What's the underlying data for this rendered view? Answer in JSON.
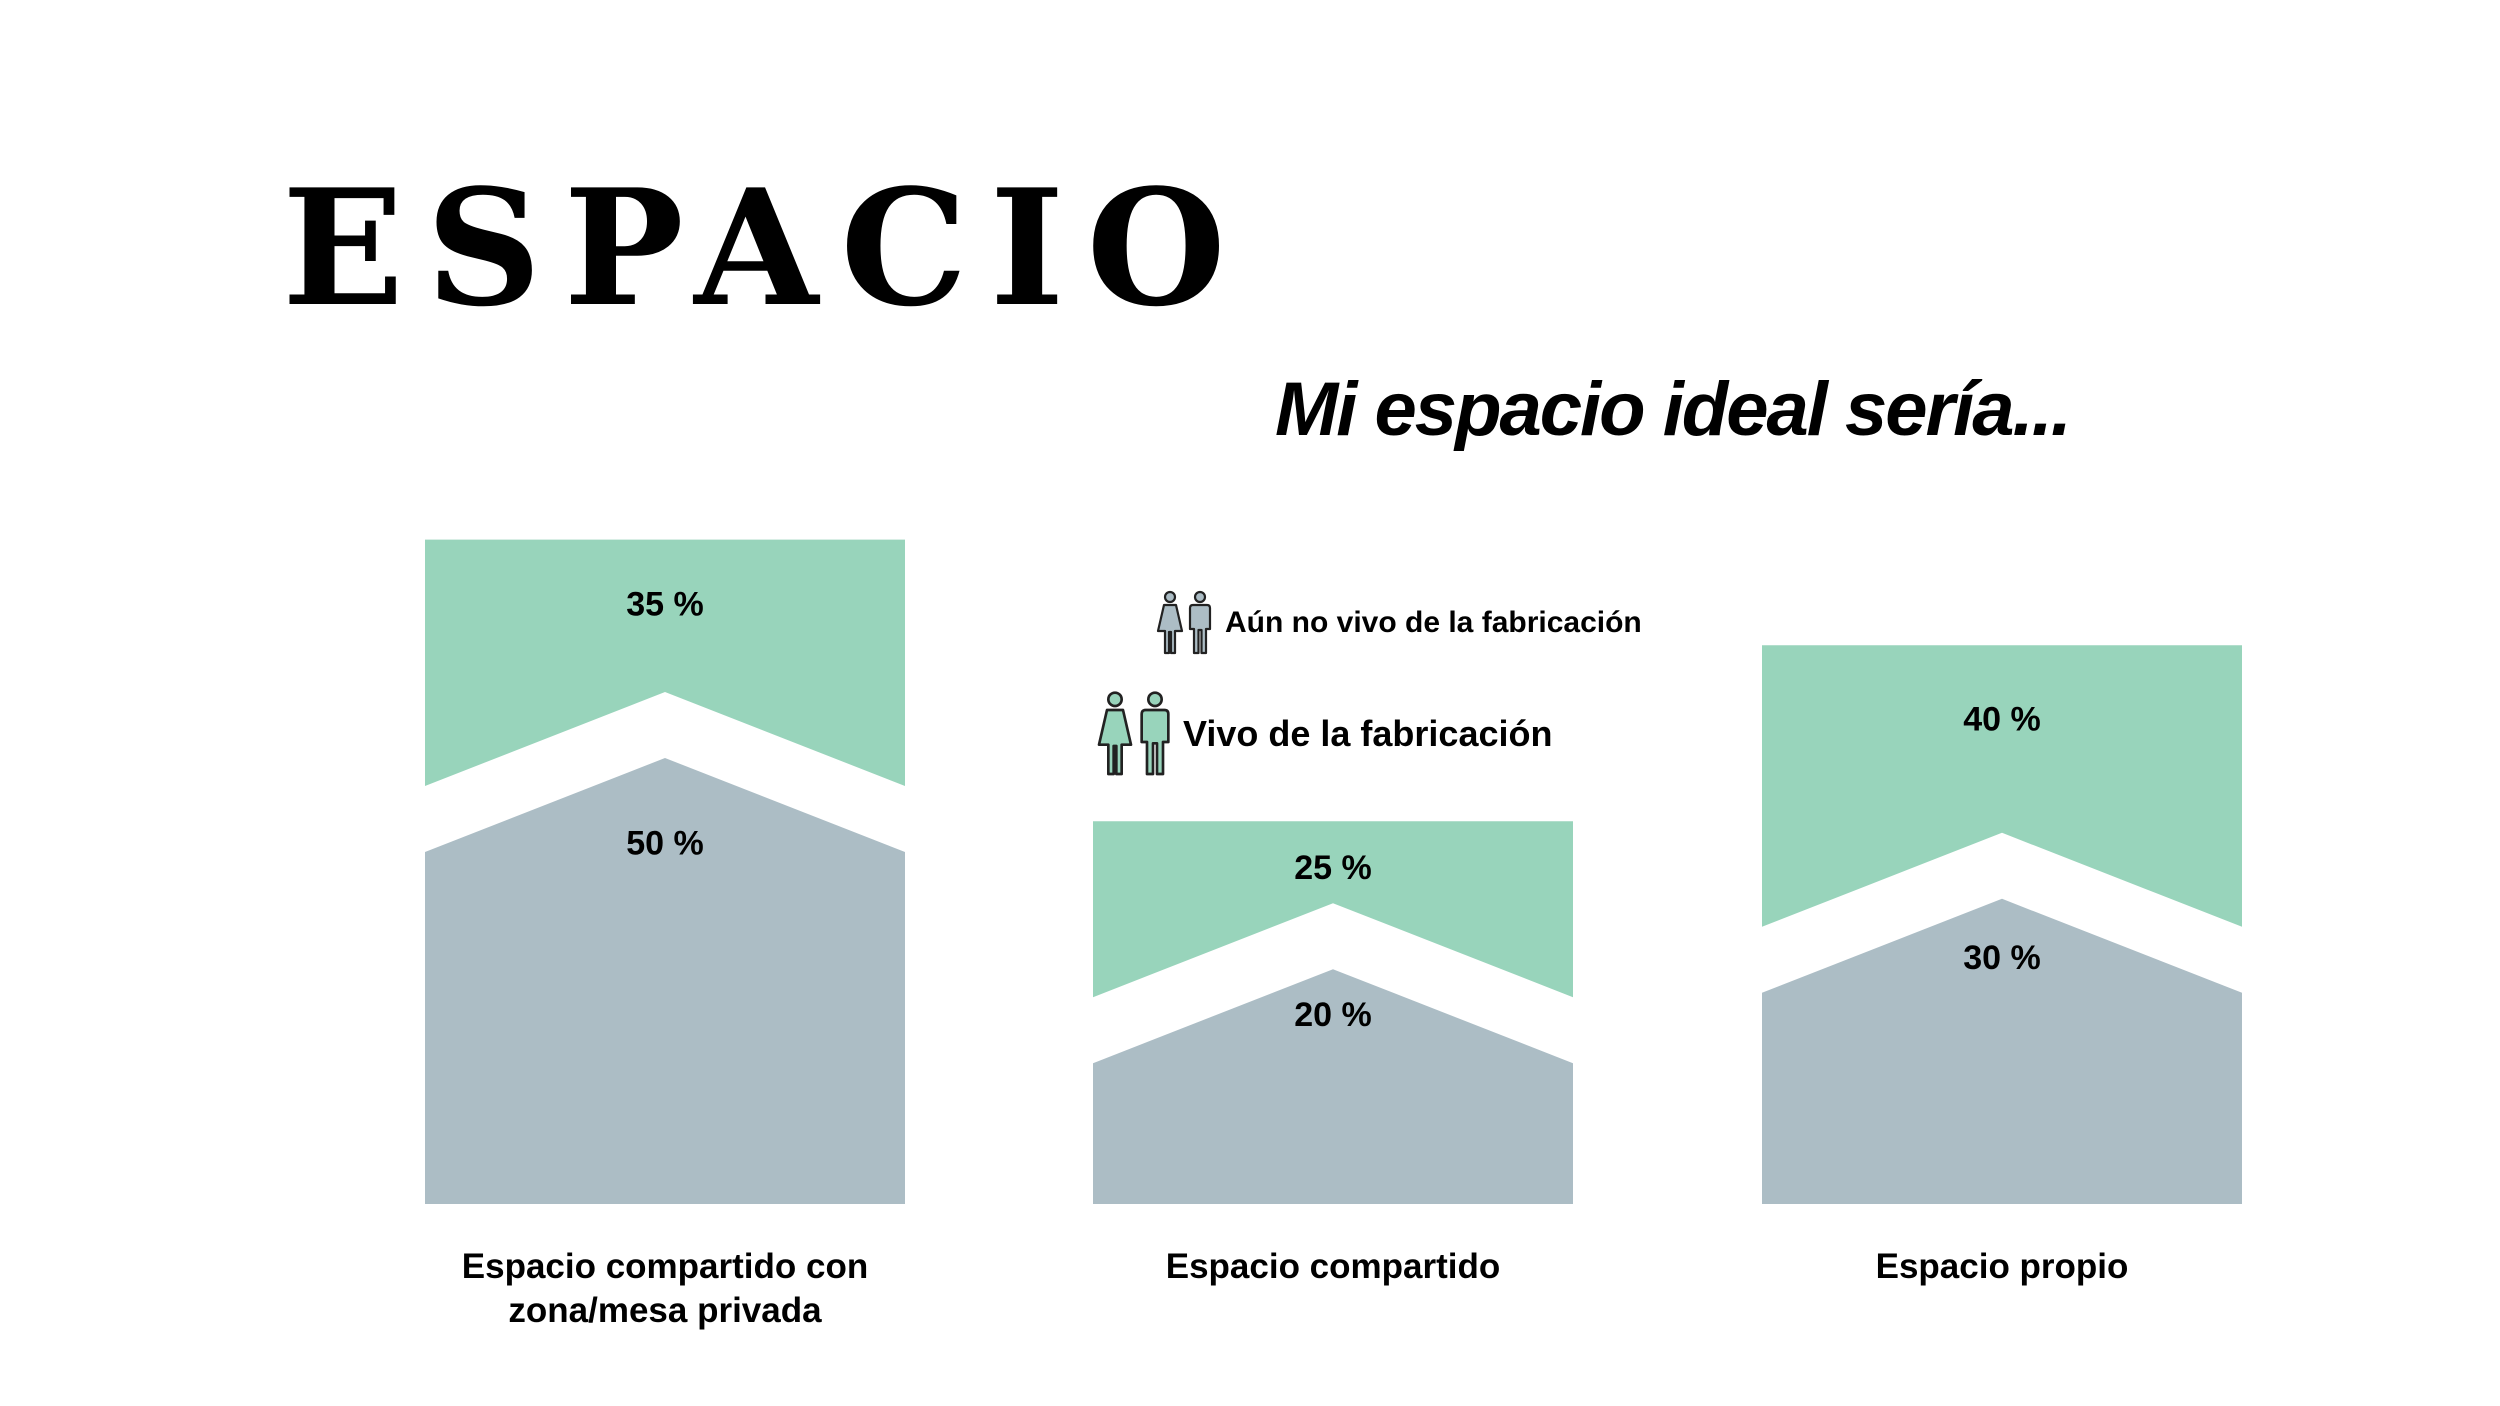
{
  "header": {
    "title": "ESPACIO",
    "subtitle": "Mi espacio ideal sería..."
  },
  "colors": {
    "vivo": "#98d4bb",
    "aun_no_vivo": "#acbdc5",
    "background": "#ffffff"
  },
  "legend": [
    {
      "label": "Aún no vivo de la fabricación",
      "color": "#acbdc5",
      "icon": "people-icon"
    },
    {
      "label": "Vivo de la fabricación",
      "color": "#98d4bb",
      "icon": "people-icon"
    }
  ],
  "chart_data": {
    "type": "bar",
    "stacked": true,
    "categories": [
      "Espacio compartido con zona/mesa privada",
      "Espacio compartido",
      "Espacio propio"
    ],
    "category_lines": [
      [
        "Espacio compartido con",
        "zona/mesa privada"
      ],
      [
        "Espacio compartido"
      ],
      [
        "Espacio propio"
      ]
    ],
    "series": [
      {
        "name": "Aún no vivo de la fabricación",
        "values": [
          50,
          20,
          30
        ],
        "labels": [
          "50 %",
          "20 %",
          "30 %"
        ]
      },
      {
        "name": "Vivo de la fabricación",
        "values": [
          35,
          25,
          40
        ],
        "labels": [
          "35 %",
          "25 %",
          "40 %"
        ]
      }
    ],
    "title": "Mi espacio ideal sería...",
    "xlabel": "",
    "ylabel": "",
    "ylim": [
      0,
      90
    ],
    "grid": false,
    "legend_position": "top-center"
  }
}
